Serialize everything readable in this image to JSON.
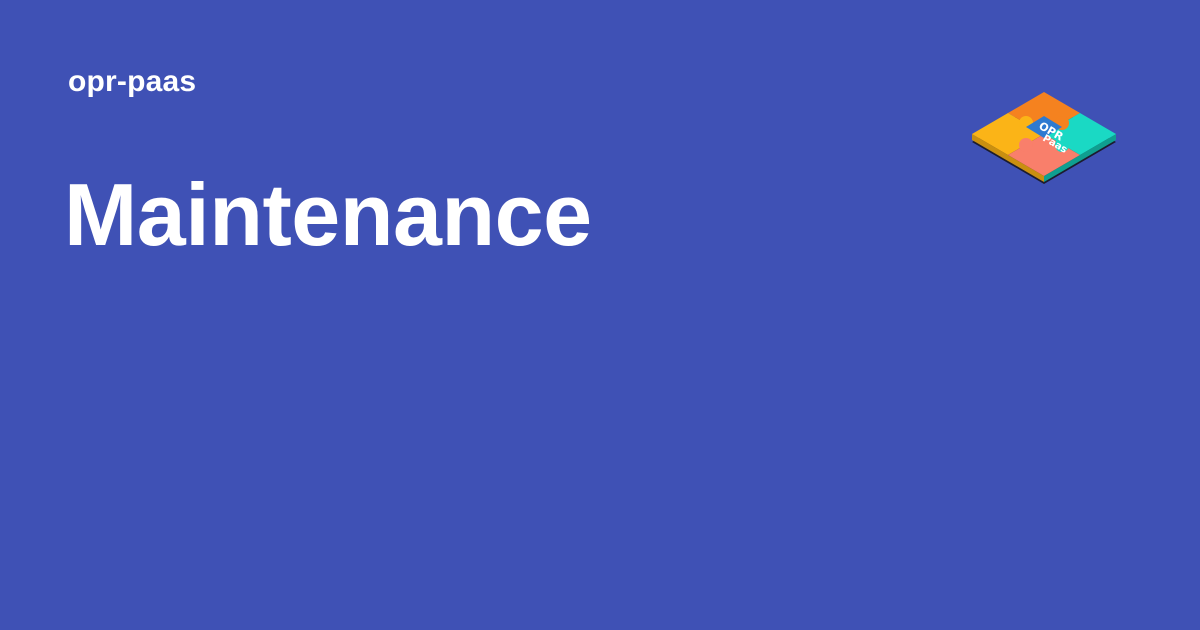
{
  "site_name": "opr-paas",
  "page_title": "Maintenance",
  "logo": {
    "icon": "opr-paas-puzzle-logo-icon",
    "text_line1": "OPR",
    "text_line2": "Paas"
  },
  "colors": {
    "background": "#3f51b5",
    "text": "#ffffff",
    "puzzle_orange": "#f5821f",
    "puzzle_yellow": "#fbb417",
    "puzzle_teal": "#1ad9c4",
    "puzzle_salmon": "#f97f6b",
    "puzzle_center_blue": "#2e7ad1",
    "puzzle_base": "#1c1c2e"
  }
}
